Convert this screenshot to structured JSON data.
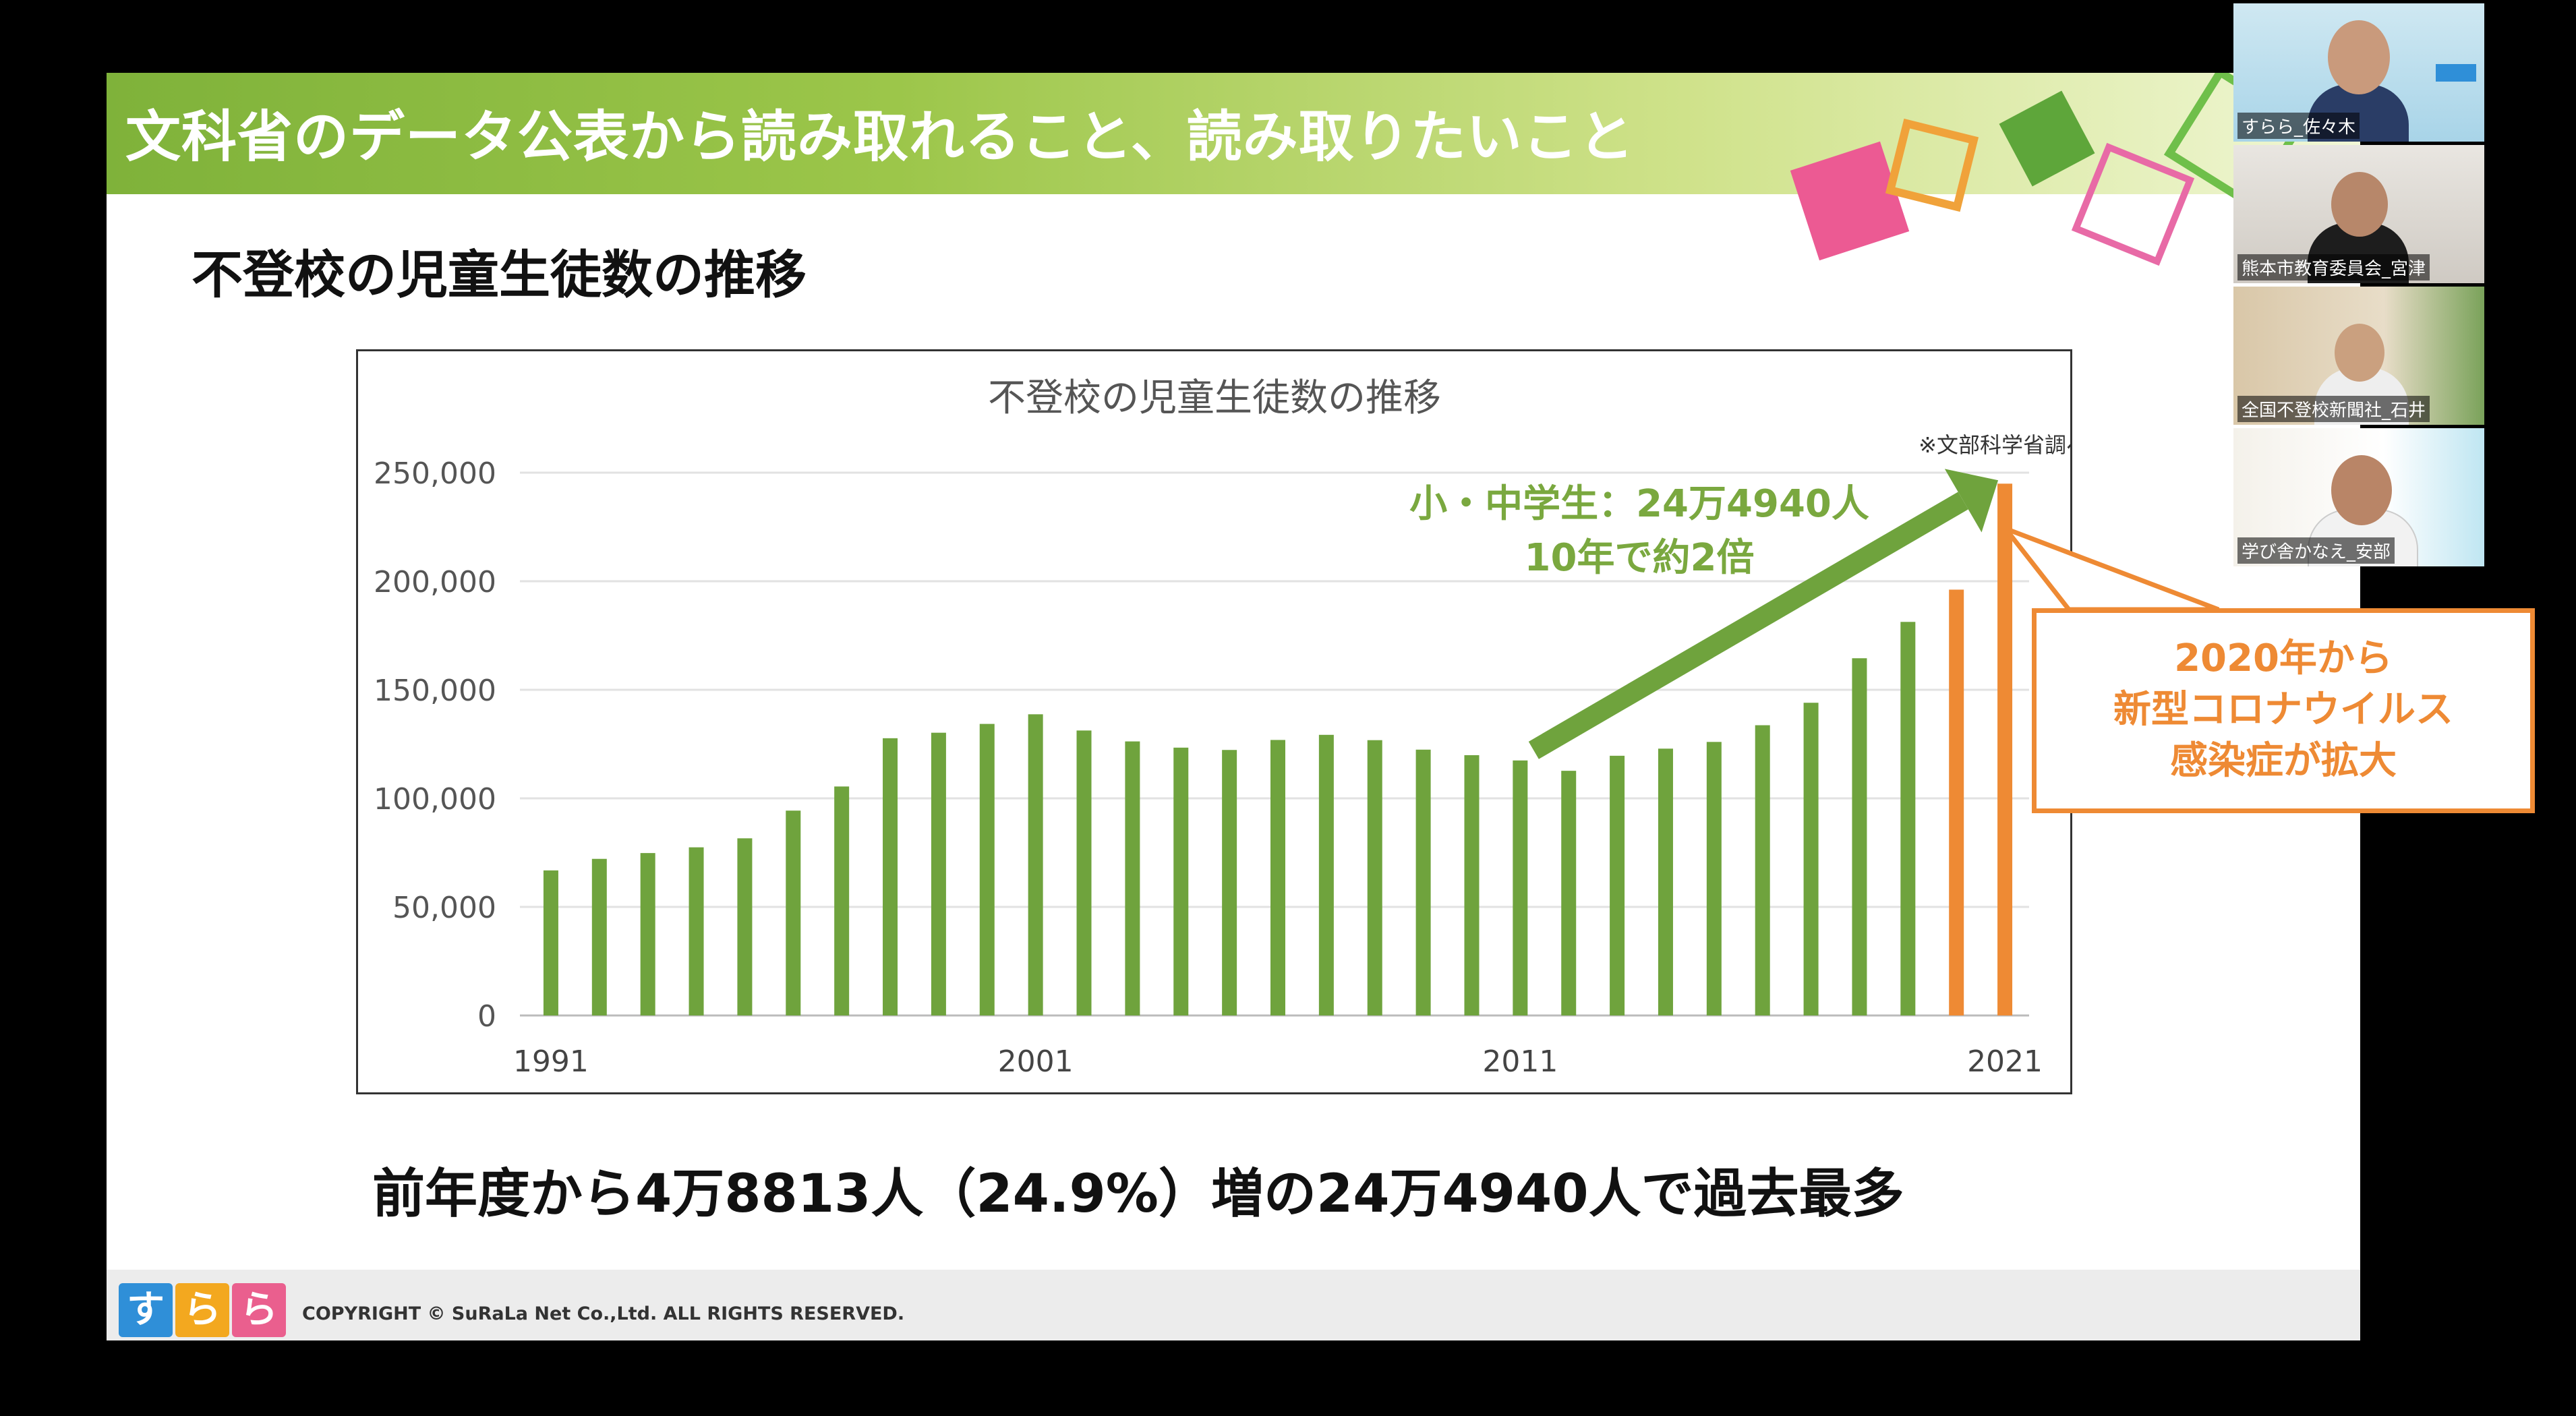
{
  "slide": {
    "title": "文科省のデータ公表から読み取れること、読み取りたいこと",
    "subtitle": "不登校の児童生徒数の推移",
    "conclusion": "前年度から4万8813人（24.9%）増の24万4940人で過去最多",
    "copyright": "COPYRIGHT © SuRaLa Net Co.,Ltd. ALL RIGHTS RESERVED.",
    "logo": [
      "す",
      "ら",
      "ら"
    ]
  },
  "chart_data": {
    "type": "bar",
    "title": "不登校の児童生徒数の推移",
    "source_note": "※文部科学省調べ",
    "x": [
      1991,
      1992,
      1993,
      1994,
      1995,
      1996,
      1997,
      1998,
      1999,
      2000,
      2001,
      2002,
      2003,
      2004,
      2005,
      2006,
      2007,
      2008,
      2009,
      2010,
      2011,
      2012,
      2013,
      2014,
      2015,
      2016,
      2017,
      2018,
      2019,
      2020,
      2021
    ],
    "values": [
      66817,
      72131,
      74808,
      77449,
      81591,
      94351,
      105466,
      127692,
      130228,
      134286,
      138722,
      131252,
      126226,
      123358,
      122287,
      126894,
      129255,
      126805,
      122432,
      119891,
      117458,
      112689,
      119617,
      122897,
      125991,
      133683,
      144031,
      164528,
      181272,
      196127,
      244940
    ],
    "highlight_years": [
      2020,
      2021
    ],
    "xtick_labels": [
      "1991",
      "2001",
      "2011",
      "2021"
    ],
    "ytick_labels": [
      "0",
      "50,000",
      "100,000",
      "150,000",
      "200,000",
      "250,000"
    ],
    "ylim": [
      0,
      250000
    ],
    "grid": true,
    "colors": {
      "bar": "#6fa33d",
      "highlight": "#ee8a34",
      "arrow": "#6fa33d"
    },
    "annotation": {
      "line1": "小・中学生：24万4940人",
      "line2": "10年で約2倍",
      "partial_label": "20"
    }
  },
  "callout": {
    "lines": [
      "2020年から",
      "新型コロナウイルス",
      "感染症が拡大"
    ]
  },
  "participants": [
    {
      "name": "すらら_佐々木"
    },
    {
      "name": "熊本市教育委員会_宮津"
    },
    {
      "name": "全国不登校新聞社_石井"
    },
    {
      "name": "学び舎かなえ_安部"
    }
  ]
}
